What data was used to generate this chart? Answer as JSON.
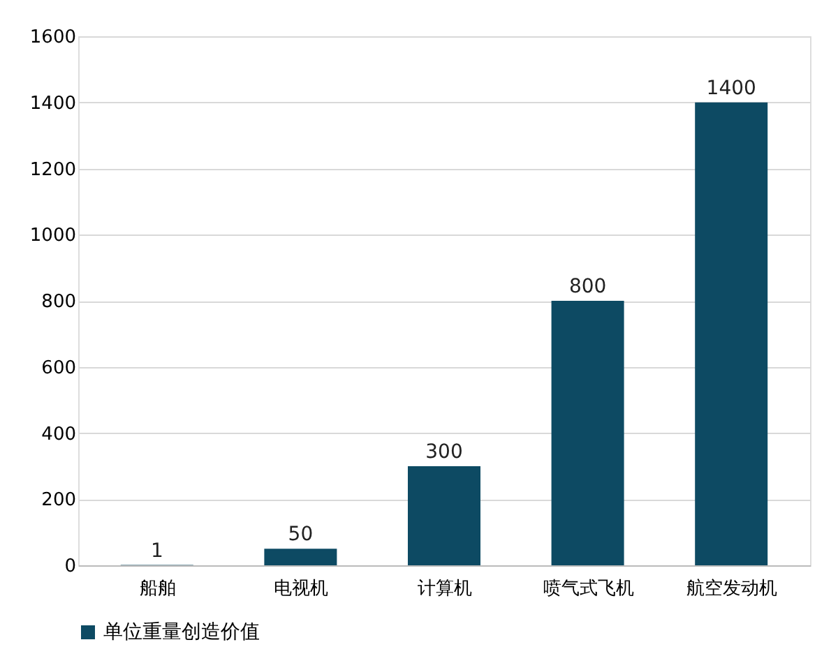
{
  "chart_data": {
    "type": "bar",
    "categories": [
      "船舶",
      "电视机",
      "计算机",
      "喷气式飞机",
      "航空发动机"
    ],
    "series": [
      {
        "name": "单位重量创造价值",
        "color": "#0d4a63",
        "values": [
          1,
          50,
          300,
          800,
          1400
        ]
      }
    ],
    "ylim": [
      0,
      1600
    ],
    "yticks": [
      0,
      200,
      400,
      600,
      800,
      1000,
      1200,
      1400,
      1600
    ],
    "grid": "y",
    "legend": "bottom",
    "data_labels": true
  }
}
